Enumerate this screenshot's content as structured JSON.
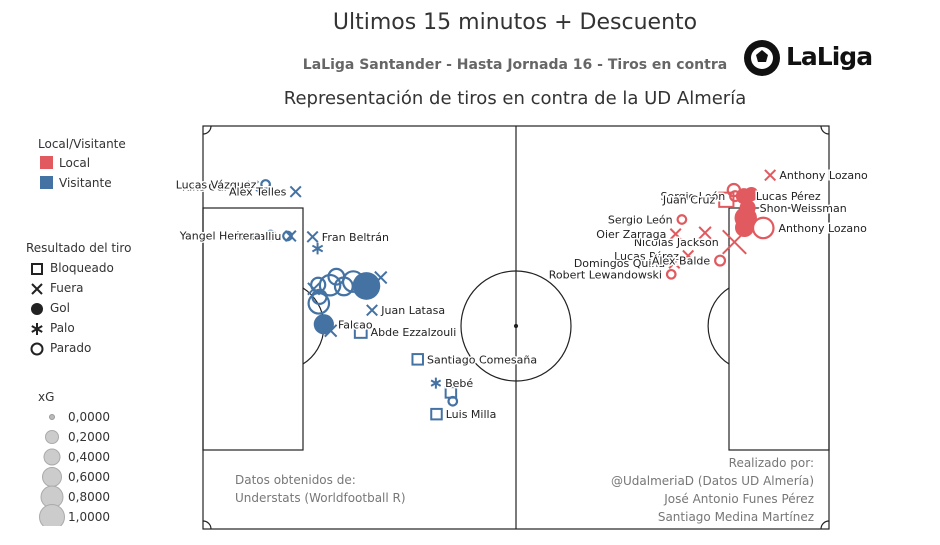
{
  "header": {
    "title": "Ultimos 15 minutos + Descuento",
    "subtitle": "LaLiga Santander - Hasta Jornada 16 - Tiros en contra",
    "chart_title": "Representación de tiros en contra de la UD Almería",
    "logo_text": "LaLiga"
  },
  "legend": {
    "team_title": "Local/Visitante",
    "teams": [
      {
        "label": "Local",
        "color": "#e05a5f"
      },
      {
        "label": "Visitante",
        "color": "#4472a3"
      }
    ],
    "result_title": "Resultado del tiro",
    "results": [
      {
        "label": "Bloqueado",
        "symbol": "square"
      },
      {
        "label": "Fuera",
        "symbol": "cross"
      },
      {
        "label": "Gol",
        "symbol": "filled-circle"
      },
      {
        "label": "Palo",
        "symbol": "asterisk"
      },
      {
        "label": "Parado",
        "symbol": "open-circle"
      }
    ],
    "xg_title": "xG",
    "xg_levels": [
      "0,0000",
      "0,2000",
      "0,4000",
      "0,6000",
      "0,8000",
      "1,0000"
    ]
  },
  "notes": {
    "left": [
      "Datos obtenidos de:",
      "Understats (Worldfootball R)"
    ],
    "right": [
      "Realizado por:",
      "@UdalmeriaD (Datos UD Almería)",
      "José Antonio Funes Pérez",
      "Santiago Medina Martínez"
    ]
  },
  "colors": {
    "local": "#e05a5f",
    "visitante": "#4472a3",
    "pitch_line": "#222222"
  },
  "chart_data": {
    "type": "scatter",
    "x_range": [
      0,
      100
    ],
    "y_range": [
      0,
      100
    ],
    "series": [
      {
        "name": "Visitante",
        "points": [
          {
            "x": 8.0,
            "y": 15.0,
            "result": "Fuera",
            "xg": 0.03,
            "label": "Kike García"
          },
          {
            "x": 10.0,
            "y": 14.5,
            "result": "Parado",
            "xg": 0.03,
            "label": "Lucas Vázquez"
          },
          {
            "x": 14.8,
            "y": 16.3,
            "result": "Fuera",
            "xg": 0.03,
            "label": "Alex Telles"
          },
          {
            "x": 14.0,
            "y": 27.3,
            "result": "Fuera",
            "xg": 0.03,
            "label": "Iván Balliu"
          },
          {
            "x": 13.5,
            "y": 27.3,
            "result": "Parado",
            "xg": 0.03,
            "label": ""
          },
          {
            "x": 10.8,
            "y": 27.2,
            "result": "Parado",
            "xg": 0.05,
            "label": "Yangel Herrera"
          },
          {
            "x": 17.5,
            "y": 27.5,
            "result": "Fuera",
            "xg": 0.03,
            "label": "Fran Beltrán"
          },
          {
            "x": 18.3,
            "y": 30.4,
            "result": "Palo",
            "xg": 0.05,
            "label": ""
          },
          {
            "x": 18.4,
            "y": 39.4,
            "result": "Parado",
            "xg": 0.15,
            "label": ""
          },
          {
            "x": 20.3,
            "y": 39.5,
            "result": "Parado",
            "xg": 0.4,
            "label": ""
          },
          {
            "x": 21.3,
            "y": 37.4,
            "result": "Parado",
            "xg": 0.2,
            "label": ""
          },
          {
            "x": 22.5,
            "y": 39.8,
            "result": "Parado",
            "xg": 0.28,
            "label": ""
          },
          {
            "x": 24.0,
            "y": 38.6,
            "result": "Parado",
            "xg": 0.4,
            "label": ""
          },
          {
            "x": 26.1,
            "y": 39.7,
            "result": "Gol",
            "xg": 0.7,
            "label": ""
          },
          {
            "x": 28.4,
            "y": 37.6,
            "result": "Fuera",
            "xg": 0.05,
            "label": ""
          },
          {
            "x": 27.0,
            "y": 45.7,
            "result": "Fuera",
            "xg": 0.03,
            "label": "Juan Latasa"
          },
          {
            "x": 17.7,
            "y": 40.4,
            "result": "Fuera",
            "xg": 0.05,
            "label": ""
          },
          {
            "x": 18.5,
            "y": 44.0,
            "result": "Parado",
            "xg": 0.4,
            "label": ""
          },
          {
            "x": 18.6,
            "y": 42.4,
            "result": "Parado",
            "xg": 0.15,
            "label": ""
          },
          {
            "x": 19.3,
            "y": 49.2,
            "result": "Gol",
            "xg": 0.3,
            "label": "Falcao"
          },
          {
            "x": 20.4,
            "y": 50.8,
            "result": "Fuera",
            "xg": 0.05,
            "label": ""
          },
          {
            "x": 25.2,
            "y": 51.1,
            "result": "Bloqueado",
            "xg": 0.05,
            "label": "Abde Ezzalzouli"
          },
          {
            "x": 34.3,
            "y": 57.9,
            "result": "Bloqueado",
            "xg": 0.03,
            "label": "Santiago Comesaña"
          },
          {
            "x": 37.2,
            "y": 63.8,
            "result": "Palo",
            "xg": 0.03,
            "label": "Bebé"
          },
          {
            "x": 39.6,
            "y": 66.1,
            "result": "Bloqueado",
            "xg": 0.03,
            "label": ""
          },
          {
            "x": 39.9,
            "y": 68.3,
            "result": "Parado",
            "xg": 0.03,
            "label": ""
          },
          {
            "x": 37.3,
            "y": 71.5,
            "result": "Bloqueado",
            "xg": 0.03,
            "label": "Luis Milla"
          }
        ]
      },
      {
        "name": "Local",
        "points": [
          {
            "x": 90.6,
            "y": 12.2,
            "result": "Fuera",
            "xg": 0.03,
            "label": "Anthony Lozano"
          },
          {
            "x": 85.0,
            "y": 17.4,
            "result": "Parado",
            "xg": 0.05,
            "label": "Sergio León"
          },
          {
            "x": 83.6,
            "y": 18.3,
            "result": "Bloqueado",
            "xg": 0.1,
            "label": "Juan Cruz"
          },
          {
            "x": 84.8,
            "y": 15.9,
            "result": "Parado",
            "xg": 0.1,
            "label": ""
          },
          {
            "x": 86.4,
            "y": 17.4,
            "result": "Gol",
            "xg": 0.15,
            "label": "Lucas Pérez"
          },
          {
            "x": 87.6,
            "y": 16.9,
            "result": "Gol",
            "xg": 0.1,
            "label": ""
          },
          {
            "x": 87.0,
            "y": 20.3,
            "result": "Gol",
            "xg": 0.15,
            "label": "Shon Weissman"
          },
          {
            "x": 86.7,
            "y": 22.8,
            "result": "Gol",
            "xg": 0.4,
            "label": ""
          },
          {
            "x": 86.5,
            "y": 25.2,
            "result": "Gol",
            "xg": 0.25,
            "label": ""
          },
          {
            "x": 89.5,
            "y": 25.3,
            "result": "Parado",
            "xg": 0.4,
            "label": "Anthony Lozano"
          },
          {
            "x": 84.9,
            "y": 28.8,
            "result": "Fuera",
            "xg": 0.45,
            "label": "Nicolas Jackson"
          },
          {
            "x": 80.2,
            "y": 26.5,
            "result": "Fuera",
            "xg": 0.05,
            "label": ""
          },
          {
            "x": 76.5,
            "y": 23.2,
            "result": "Parado",
            "xg": 0.03,
            "label": "Sergio León"
          },
          {
            "x": 75.5,
            "y": 26.8,
            "result": "Fuera",
            "xg": 0.03,
            "label": "Oier Zarraga"
          },
          {
            "x": 77.5,
            "y": 32.2,
            "result": "Fuera",
            "xg": 0.03,
            "label": "Lucas Pérez"
          },
          {
            "x": 75.3,
            "y": 34.0,
            "result": "Fuera",
            "xg": 0.03,
            "label": "Domingos Quina"
          },
          {
            "x": 82.6,
            "y": 33.4,
            "result": "Parado",
            "xg": 0.05,
            "label": "Álex Balde"
          },
          {
            "x": 74.8,
            "y": 36.8,
            "result": "Parado",
            "xg": 0.03,
            "label": "Robert Lewandowski"
          }
        ]
      }
    ]
  }
}
